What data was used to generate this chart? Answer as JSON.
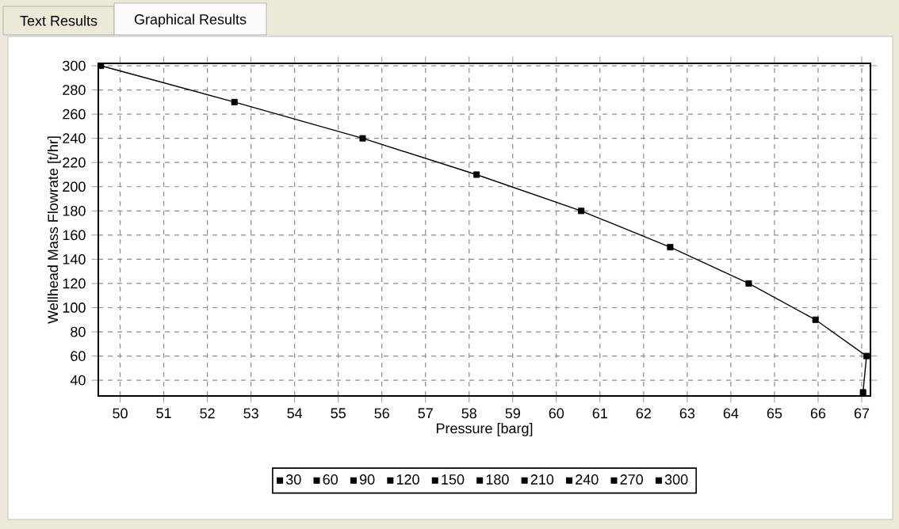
{
  "chart_data": {
    "type": "line",
    "xlabel": "Pressure [barg]",
    "ylabel": "Wellhead Mass Flowrate [t/hr]",
    "annotations": [
      "Text Results",
      "Graphical Results"
    ],
    "xlim": [
      49.5,
      67.2
    ],
    "ylim": [
      27,
      302
    ],
    "xticks": [
      50,
      51,
      52,
      53,
      54,
      55,
      56,
      57,
      58,
      59,
      60,
      61,
      62,
      63,
      64,
      65,
      66,
      67
    ],
    "yticks": [
      40,
      60,
      80,
      100,
      120,
      140,
      160,
      180,
      200,
      220,
      240,
      260,
      280,
      300
    ],
    "grid": true,
    "legend": "bottom",
    "series": [
      {
        "color": "#000000",
        "marker": "none",
        "x": [
          49.56,
          52.62,
          55.56,
          58.17,
          60.57,
          62.61,
          64.41,
          65.94,
          67.11,
          67.03
        ],
        "values": [
          300,
          270,
          240,
          210,
          180,
          150,
          120,
          90,
          60,
          30
        ]
      },
      {
        "type": "scatter",
        "name": "30",
        "color": "#000000",
        "marker": "square",
        "x": [
          67.03
        ],
        "values": [
          30
        ]
      },
      {
        "type": "scatter",
        "name": "60",
        "color": "#000000",
        "marker": "square",
        "x": [
          67.11
        ],
        "values": [
          60
        ]
      },
      {
        "type": "scatter",
        "name": "90",
        "color": "#000000",
        "marker": "square",
        "x": [
          65.94
        ],
        "values": [
          90
        ]
      },
      {
        "type": "scatter",
        "name": "120",
        "color": "#000000",
        "marker": "square",
        "x": [
          64.41
        ],
        "values": [
          120
        ]
      },
      {
        "type": "scatter",
        "name": "150",
        "color": "#000000",
        "marker": "square",
        "x": [
          62.61
        ],
        "values": [
          150
        ]
      },
      {
        "type": "scatter",
        "name": "180",
        "color": "#000000",
        "marker": "square",
        "x": [
          60.57
        ],
        "values": [
          180
        ]
      },
      {
        "type": "scatter",
        "name": "210",
        "color": "#000000",
        "marker": "square",
        "x": [
          58.17
        ],
        "values": [
          210
        ]
      },
      {
        "type": "scatter",
        "name": "240",
        "color": "#000000",
        "marker": "square",
        "x": [
          55.56
        ],
        "values": [
          240
        ]
      },
      {
        "type": "scatter",
        "name": "270",
        "color": "#000000",
        "marker": "square",
        "x": [
          52.62
        ],
        "values": [
          270
        ]
      },
      {
        "type": "scatter",
        "name": "300",
        "color": "#000000",
        "marker": "square",
        "x": [
          49.56
        ],
        "values": [
          300
        ]
      }
    ]
  }
}
